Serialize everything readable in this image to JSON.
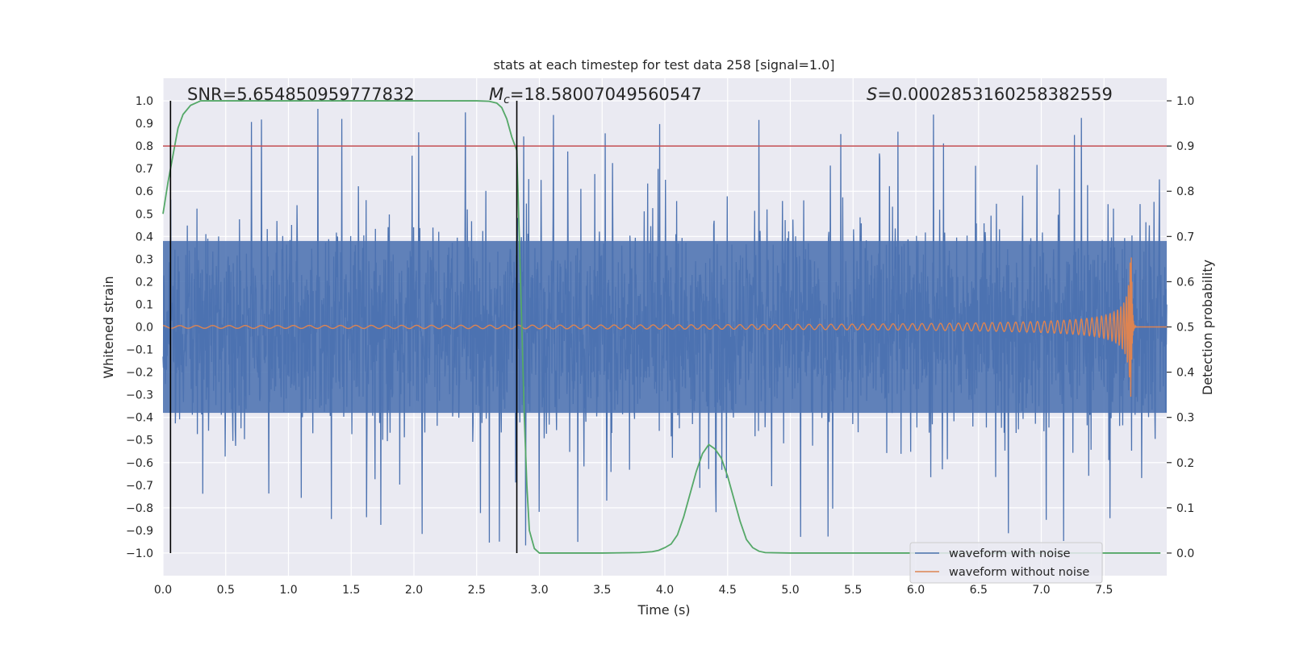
{
  "chart_data": {
    "type": "line",
    "title": "stats at each timestep for test data 258 [signal=1.0]",
    "xlabel": "Time (s)",
    "ylabel": "Whitened strain",
    "y2label": "Detection probability",
    "xlim": [
      0.0,
      8.0
    ],
    "ylim": [
      -1.1,
      1.1
    ],
    "y2lim": [
      -0.05,
      1.05
    ],
    "x_ticks": [
      0.0,
      0.5,
      1.0,
      1.5,
      2.0,
      2.5,
      3.0,
      3.5,
      4.0,
      4.5,
      5.0,
      5.5,
      6.0,
      6.5,
      7.0,
      7.5
    ],
    "x_tick_labels": [
      "0.0",
      "0.5",
      "1.0",
      "1.5",
      "2.0",
      "2.5",
      "3.0",
      "3.5",
      "4.0",
      "4.5",
      "5.0",
      "5.5",
      "6.0",
      "6.5",
      "7.0",
      "7.5"
    ],
    "y_ticks": [
      1.0,
      0.9,
      0.8,
      0.7,
      0.6,
      0.5,
      0.4,
      0.3,
      0.2,
      0.1,
      0.0,
      -0.1,
      -0.2,
      -0.3,
      -0.4,
      -0.5,
      -0.6,
      -0.7,
      -0.8,
      -0.9,
      -1.0
    ],
    "y_tick_labels": [
      "1.0",
      "0.9",
      "0.8",
      "0.7",
      "0.6",
      "0.5",
      "0.4",
      "0.3",
      "0.2",
      "0.1",
      "0.0",
      "−0.1",
      "−0.2",
      "−0.3",
      "−0.4",
      "−0.5",
      "−0.6",
      "−0.7",
      "−0.8",
      "−0.9",
      "−1.0"
    ],
    "y2_ticks": [
      1.0,
      0.9,
      0.8,
      0.7,
      0.6,
      0.5,
      0.4,
      0.3,
      0.2,
      0.1,
      0.0
    ],
    "y2_tick_labels": [
      "1.0",
      "0.9",
      "0.8",
      "0.7",
      "0.6",
      "0.5",
      "0.4",
      "0.3",
      "0.2",
      "0.1",
      "0.0"
    ],
    "annotations": {
      "snr": "SNR=5.654850959777832",
      "mc_symbol": "M",
      "mc_sub": "c",
      "mc_value": "=18.58007049560547",
      "s_symbol": "S",
      "s_value": "=0.0002853160258382559"
    },
    "threshold_line": {
      "axis": "y2",
      "value": 0.9,
      "color": "#c44e52"
    },
    "vertical_lines": [
      0.06,
      2.82
    ],
    "series": [
      {
        "name": "waveform with noise",
        "axis": "y",
        "color": "#4c72b0",
        "description": "dense whitened noise, core amplitude ~0.38, spikes up to ~0.97",
        "core_amplitude": 0.38,
        "max_abs": 0.97
      },
      {
        "name": "waveform without noise",
        "axis": "y",
        "color": "#dd8452",
        "description": "chirp signal, amplitude rising to ~0.31 at merger near t=7.72 s",
        "merger_time": 7.72,
        "peak_amplitude": 0.31
      },
      {
        "name": "detection probability",
        "axis": "y2",
        "color": "#55a868",
        "x": [
          0.0,
          0.04,
          0.08,
          0.12,
          0.16,
          0.22,
          0.3,
          0.4,
          0.6,
          1.0,
          1.5,
          2.0,
          2.5,
          2.6,
          2.66,
          2.7,
          2.74,
          2.78,
          2.82,
          2.85,
          2.88,
          2.9,
          2.92,
          2.96,
          3.0,
          3.2,
          3.5,
          3.8,
          3.9,
          3.95,
          4.0,
          4.05,
          4.1,
          4.15,
          4.2,
          4.25,
          4.3,
          4.35,
          4.4,
          4.45,
          4.5,
          4.55,
          4.6,
          4.65,
          4.7,
          4.75,
          4.8,
          5.0,
          6.0,
          7.0,
          7.95
        ],
        "values": [
          0.75,
          0.82,
          0.88,
          0.94,
          0.97,
          0.99,
          1.0,
          1.0,
          1.0,
          1.0,
          1.0,
          1.0,
          1.0,
          0.999,
          0.995,
          0.985,
          0.96,
          0.92,
          0.89,
          0.6,
          0.3,
          0.15,
          0.05,
          0.01,
          0.0,
          0.0,
          0.0,
          0.001,
          0.003,
          0.006,
          0.012,
          0.02,
          0.04,
          0.08,
          0.13,
          0.18,
          0.22,
          0.24,
          0.23,
          0.21,
          0.17,
          0.12,
          0.07,
          0.03,
          0.012,
          0.004,
          0.001,
          0.0,
          0.0,
          0.0,
          0.0
        ]
      }
    ],
    "legend": {
      "position": "lower-right",
      "entries": [
        {
          "label": "waveform with noise",
          "color": "#4c72b0"
        },
        {
          "label": "waveform without noise",
          "color": "#dd8452"
        }
      ]
    },
    "style": {
      "background": "#eaeaf2",
      "grid_color": "#ffffff",
      "text_color": "#262626"
    }
  }
}
